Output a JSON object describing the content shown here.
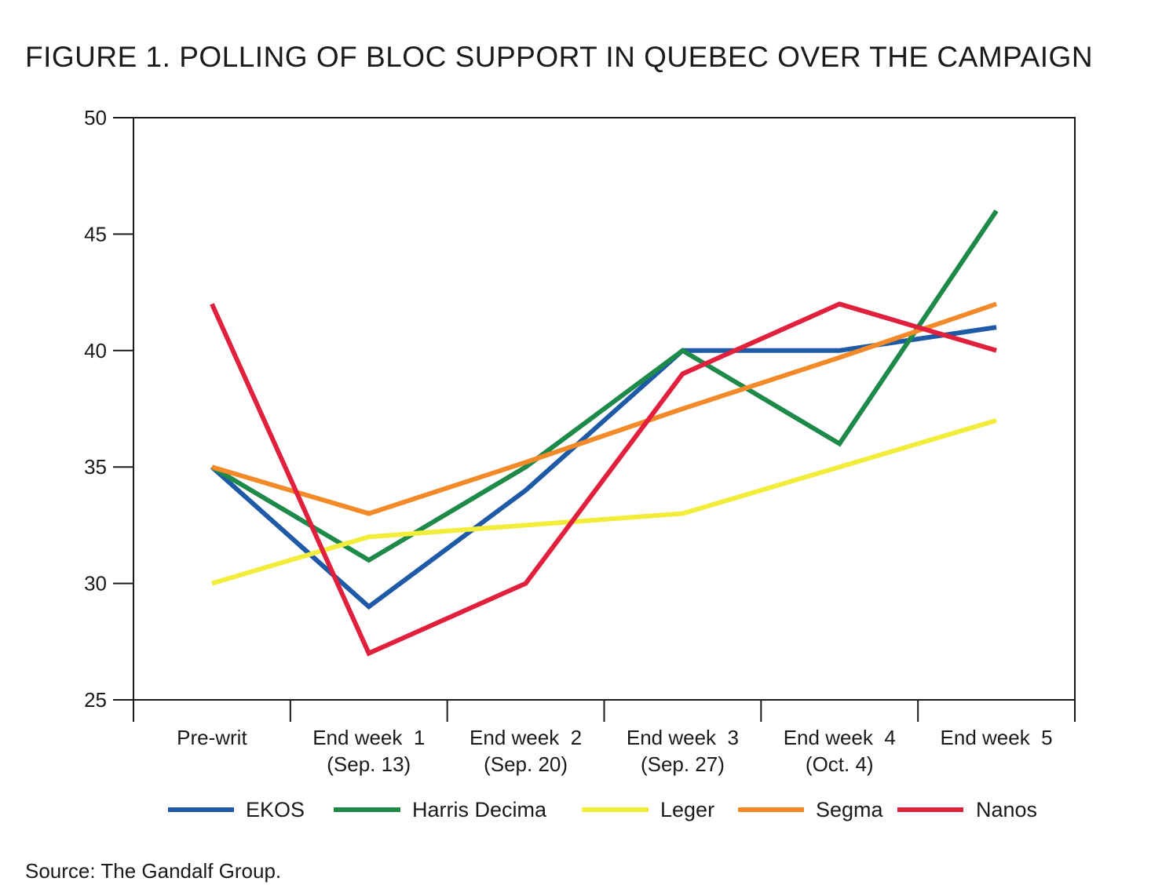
{
  "title": "FIGURE 1. POLLING OF BLOC SUPPORT IN QUEBEC OVER THE CAMPAIGN",
  "source": "Source: The Gandalf Group.",
  "chart_data": {
    "type": "line",
    "categories": [
      [
        "Pre-writ"
      ],
      [
        "End week  1",
        "(Sep. 13)"
      ],
      [
        "End week  2",
        "(Sep. 20)"
      ],
      [
        "End week  3",
        "(Sep. 27)"
      ],
      [
        "End week  4",
        "(Oct. 4)"
      ],
      [
        "End week  5"
      ]
    ],
    "ylim": [
      25,
      50
    ],
    "yticks": [
      25,
      30,
      35,
      40,
      45,
      50
    ],
    "grid": false,
    "legend": "bottom",
    "series": [
      {
        "name": "EKOS",
        "color": "#1f5aa6",
        "values": [
          35,
          29,
          34,
          40,
          40,
          41
        ]
      },
      {
        "name": "Harris Decima",
        "color": "#1e8a4a",
        "values": [
          35,
          31,
          35,
          40,
          36,
          46
        ]
      },
      {
        "name": "Leger",
        "color": "#f2ec3a",
        "values": [
          30,
          32,
          32.5,
          33,
          35,
          37
        ]
      },
      {
        "name": "Segma",
        "color": "#f28a2a",
        "values": [
          35,
          33,
          35.2,
          37.5,
          39.7,
          42
        ]
      },
      {
        "name": "Nanos",
        "color": "#e0203c",
        "values": [
          42,
          27,
          30,
          39,
          42,
          40
        ]
      }
    ]
  }
}
